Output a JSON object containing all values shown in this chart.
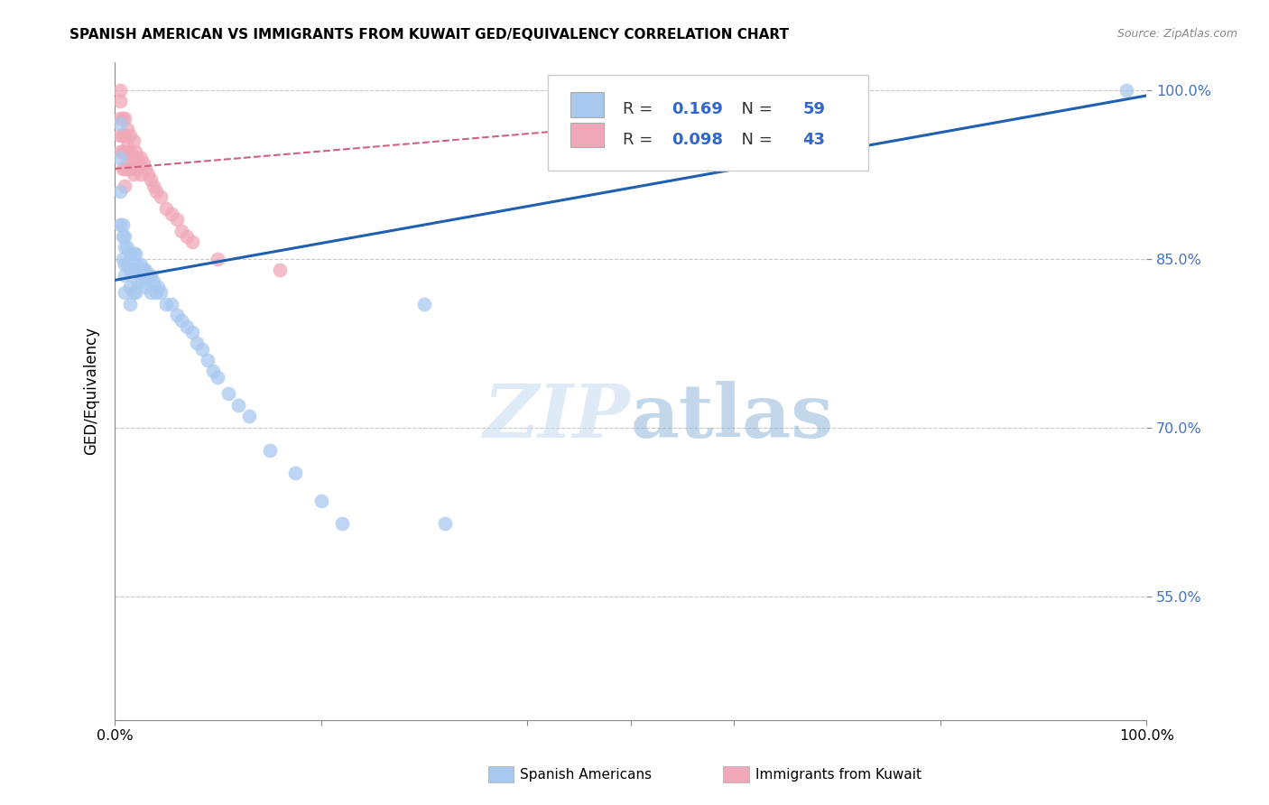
{
  "title": "SPANISH AMERICAN VS IMMIGRANTS FROM KUWAIT GED/EQUIVALENCY CORRELATION CHART",
  "source": "Source: ZipAtlas.com",
  "ylabel": "GED/Equivalency",
  "blue_label": "Spanish Americans",
  "pink_label": "Immigrants from Kuwait",
  "blue_R": 0.169,
  "blue_N": 59,
  "pink_R": 0.098,
  "pink_N": 43,
  "xmin": 0.0,
  "xmax": 1.0,
  "ymin": 0.44,
  "ymax": 1.025,
  "yticks": [
    0.55,
    0.7,
    0.85,
    1.0
  ],
  "ytick_labels": [
    "55.0%",
    "70.0%",
    "85.0%",
    "100.0%"
  ],
  "blue_color": "#A8C8F0",
  "pink_color": "#F0A8B8",
  "blue_line_color": "#2060B0",
  "pink_line_color": "#D06080",
  "blue_scatter_x": [
    0.005,
    0.005,
    0.005,
    0.005,
    0.008,
    0.008,
    0.008,
    0.01,
    0.01,
    0.01,
    0.01,
    0.01,
    0.012,
    0.012,
    0.015,
    0.015,
    0.015,
    0.015,
    0.018,
    0.018,
    0.018,
    0.02,
    0.02,
    0.02,
    0.022,
    0.022,
    0.025,
    0.025,
    0.028,
    0.03,
    0.03,
    0.032,
    0.035,
    0.035,
    0.038,
    0.04,
    0.042,
    0.045,
    0.05,
    0.055,
    0.06,
    0.065,
    0.07,
    0.075,
    0.08,
    0.085,
    0.09,
    0.095,
    0.1,
    0.11,
    0.12,
    0.13,
    0.15,
    0.175,
    0.2,
    0.22,
    0.3,
    0.32,
    0.98
  ],
  "blue_scatter_y": [
    0.97,
    0.94,
    0.91,
    0.88,
    0.88,
    0.87,
    0.85,
    0.87,
    0.86,
    0.845,
    0.835,
    0.82,
    0.86,
    0.845,
    0.855,
    0.84,
    0.825,
    0.81,
    0.855,
    0.84,
    0.82,
    0.855,
    0.84,
    0.82,
    0.845,
    0.83,
    0.845,
    0.83,
    0.84,
    0.84,
    0.825,
    0.835,
    0.835,
    0.82,
    0.83,
    0.82,
    0.825,
    0.82,
    0.81,
    0.81,
    0.8,
    0.795,
    0.79,
    0.785,
    0.775,
    0.77,
    0.76,
    0.75,
    0.745,
    0.73,
    0.72,
    0.71,
    0.68,
    0.66,
    0.635,
    0.615,
    0.81,
    0.615,
    1.0
  ],
  "pink_scatter_x": [
    0.005,
    0.005,
    0.005,
    0.005,
    0.005,
    0.008,
    0.008,
    0.008,
    0.008,
    0.01,
    0.01,
    0.01,
    0.01,
    0.01,
    0.012,
    0.012,
    0.012,
    0.015,
    0.015,
    0.015,
    0.018,
    0.018,
    0.018,
    0.02,
    0.02,
    0.022,
    0.025,
    0.025,
    0.028,
    0.03,
    0.032,
    0.035,
    0.038,
    0.04,
    0.045,
    0.05,
    0.055,
    0.06,
    0.065,
    0.07,
    0.075,
    0.1,
    0.16
  ],
  "pink_scatter_y": [
    1.0,
    0.99,
    0.975,
    0.96,
    0.945,
    0.975,
    0.96,
    0.945,
    0.93,
    0.975,
    0.96,
    0.945,
    0.93,
    0.915,
    0.965,
    0.95,
    0.935,
    0.96,
    0.945,
    0.93,
    0.955,
    0.94,
    0.925,
    0.945,
    0.93,
    0.94,
    0.94,
    0.925,
    0.935,
    0.93,
    0.925,
    0.92,
    0.915,
    0.91,
    0.905,
    0.895,
    0.89,
    0.885,
    0.875,
    0.87,
    0.865,
    0.85,
    0.84
  ],
  "blue_trend_x0": 0.0,
  "blue_trend_y0": 0.831,
  "blue_trend_x1": 1.0,
  "blue_trend_y1": 0.995,
  "pink_trend_x0": 0.0,
  "pink_trend_y0": 0.93,
  "pink_trend_x1": 0.45,
  "pink_trend_y1": 0.965
}
